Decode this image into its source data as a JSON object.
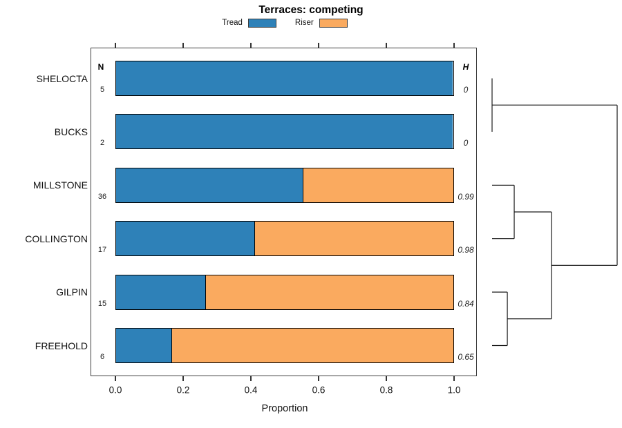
{
  "title": "Terraces: competing",
  "legend": [
    {
      "label": "Tread",
      "color": "#2e81b8"
    },
    {
      "label": "Riser",
      "color": "#faaa5f"
    }
  ],
  "columns": {
    "n_header": "N",
    "h_header": "H"
  },
  "xlabel": "Proportion",
  "x_ticks": [
    "0.0",
    "0.2",
    "0.4",
    "0.6",
    "0.8",
    "1.0"
  ],
  "chart_data": {
    "type": "bar",
    "stacked": true,
    "orientation": "horizontal",
    "title": "Terraces: competing",
    "xlabel": "Proportion",
    "xlim": [
      0,
      1
    ],
    "legend_position": "top",
    "categories": [
      "SHELOCTA",
      "BUCKS",
      "MILLSTONE",
      "COLLINGTON",
      "GILPIN",
      "FREEHOLD"
    ],
    "series": [
      {
        "name": "Tread",
        "values": [
          1.0,
          1.0,
          0.556,
          0.412,
          0.267,
          0.167
        ]
      },
      {
        "name": "Riser",
        "values": [
          0.0,
          0.0,
          0.444,
          0.588,
          0.733,
          0.833
        ]
      }
    ],
    "n_values": [
      5,
      2,
      36,
      17,
      15,
      6
    ],
    "h_values": [
      "0",
      "0",
      "0.99",
      "0.98",
      "0.84",
      "0.65"
    ],
    "dendrogram": {
      "position": "right",
      "note": "heights are fractions of the dendrogram panel width; leaves are category indices, mN refers to merge N",
      "merges": [
        {
          "a": 0,
          "b": 1,
          "height": 0.0
        },
        {
          "a": 2,
          "b": 3,
          "height": 0.177
        },
        {
          "a": 4,
          "b": 5,
          "height": 0.122
        },
        {
          "a": "m1",
          "b": "m2",
          "height": 0.475
        },
        {
          "a": "m0",
          "b": "m3",
          "height": 1.0
        }
      ]
    }
  }
}
